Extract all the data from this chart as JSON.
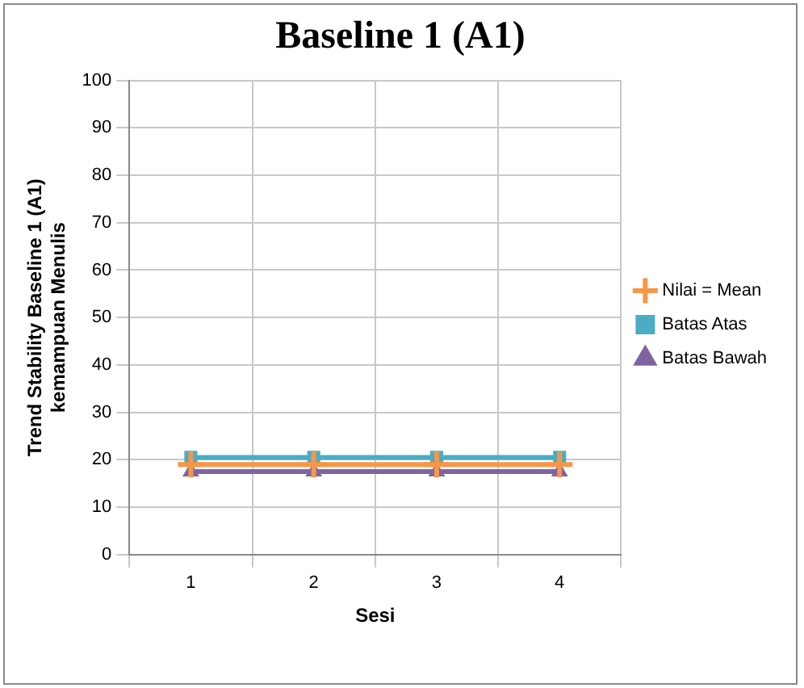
{
  "chart_data": {
    "type": "line",
    "title": "Baseline 1 (A1)",
    "xlabel": "Sesi",
    "ylabel": "Trend Stability Baseline 1 (A1)\nkemampuan Menulis",
    "categories": [
      "1",
      "2",
      "3",
      "4"
    ],
    "series": [
      {
        "name": "Nilai = Mean",
        "color": "#f79646",
        "values": [
          19,
          19,
          19,
          19
        ],
        "marker": "cross"
      },
      {
        "name": "Batas Atas",
        "color": "#4bacc6",
        "values": [
          20.5,
          20.5,
          20.5,
          20.5
        ],
        "marker": "square"
      },
      {
        "name": "Batas Bawah",
        "color": "#8064a2",
        "values": [
          17.5,
          17.5,
          17.5,
          17.5
        ],
        "marker": "triangle"
      }
    ],
    "ylim": [
      0,
      100
    ],
    "yticks": [
      0,
      10,
      20,
      30,
      40,
      50,
      60,
      70,
      80,
      90,
      100
    ],
    "grid": true,
    "legend": "right"
  }
}
